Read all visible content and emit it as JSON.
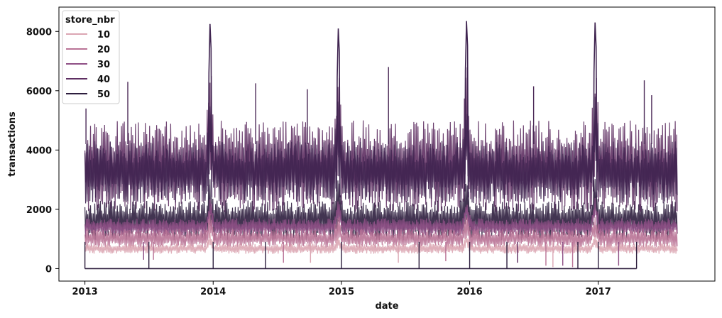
{
  "chart_data": {
    "type": "line",
    "title": "",
    "xlabel": "date",
    "ylabel": "transactions",
    "x_tick_labels": [
      "2013",
      "2014",
      "2015",
      "2016",
      "2017"
    ],
    "y_ticks": [
      0,
      2000,
      4000,
      6000,
      8000
    ],
    "y_tick_labels": [
      "0",
      "2000",
      "4000",
      "6000",
      "8000"
    ],
    "xlim": [
      "2012-10-19",
      "2017-11-29"
    ],
    "ylim": [
      -420,
      8820
    ],
    "grid": false,
    "legend": {
      "title": "store_nbr",
      "placement": "top-left",
      "entries": [
        {
          "label": "10",
          "color": "#dba6b3"
        },
        {
          "label": "20",
          "color": "#b97396"
        },
        {
          "label": "30",
          "color": "#8e4f85"
        },
        {
          "label": "40",
          "color": "#5e2f62"
        },
        {
          "label": "50",
          "color": "#2d1e3e"
        }
      ]
    },
    "series_summary": {
      "date_range": [
        "2013-01-01",
        "2017-08-15"
      ],
      "bands": [
        {
          "color": "#2d1e3e",
          "low": 950,
          "high": 2300
        },
        {
          "color": "#5e2f62",
          "low": 1900,
          "high": 5000
        },
        {
          "color": "#3f2450",
          "low": 2200,
          "high": 4300
        },
        {
          "color": "#8e4f85",
          "low": 1100,
          "high": 1700
        },
        {
          "color": "#b97396",
          "low": 700,
          "high": 1350
        },
        {
          "color": "#dba6b3",
          "low": 500,
          "high": 850
        }
      ],
      "year_end_peaks": [
        {
          "date": "2013-12-23",
          "value": 8250
        },
        {
          "date": "2014-12-23",
          "value": 8100
        },
        {
          "date": "2015-12-23",
          "value": 8350
        },
        {
          "date": "2016-12-23",
          "value": 8300
        }
      ],
      "outlier_spikes": [
        {
          "date": "2013-01-04",
          "value": 5400
        },
        {
          "date": "2013-05-03",
          "value": 6300
        },
        {
          "date": "2014-05-02",
          "value": 6250
        },
        {
          "date": "2014-09-26",
          "value": 6050
        },
        {
          "date": "2015-05-15",
          "value": 6800
        },
        {
          "date": "2016-07-01",
          "value": 6150
        },
        {
          "date": "2017-05-12",
          "value": 6350
        },
        {
          "date": "2017-06-02",
          "value": 5850
        }
      ],
      "zero_baseline": {
        "from": "2013-01-01",
        "to": "2017-04-20",
        "value": 0
      }
    }
  }
}
